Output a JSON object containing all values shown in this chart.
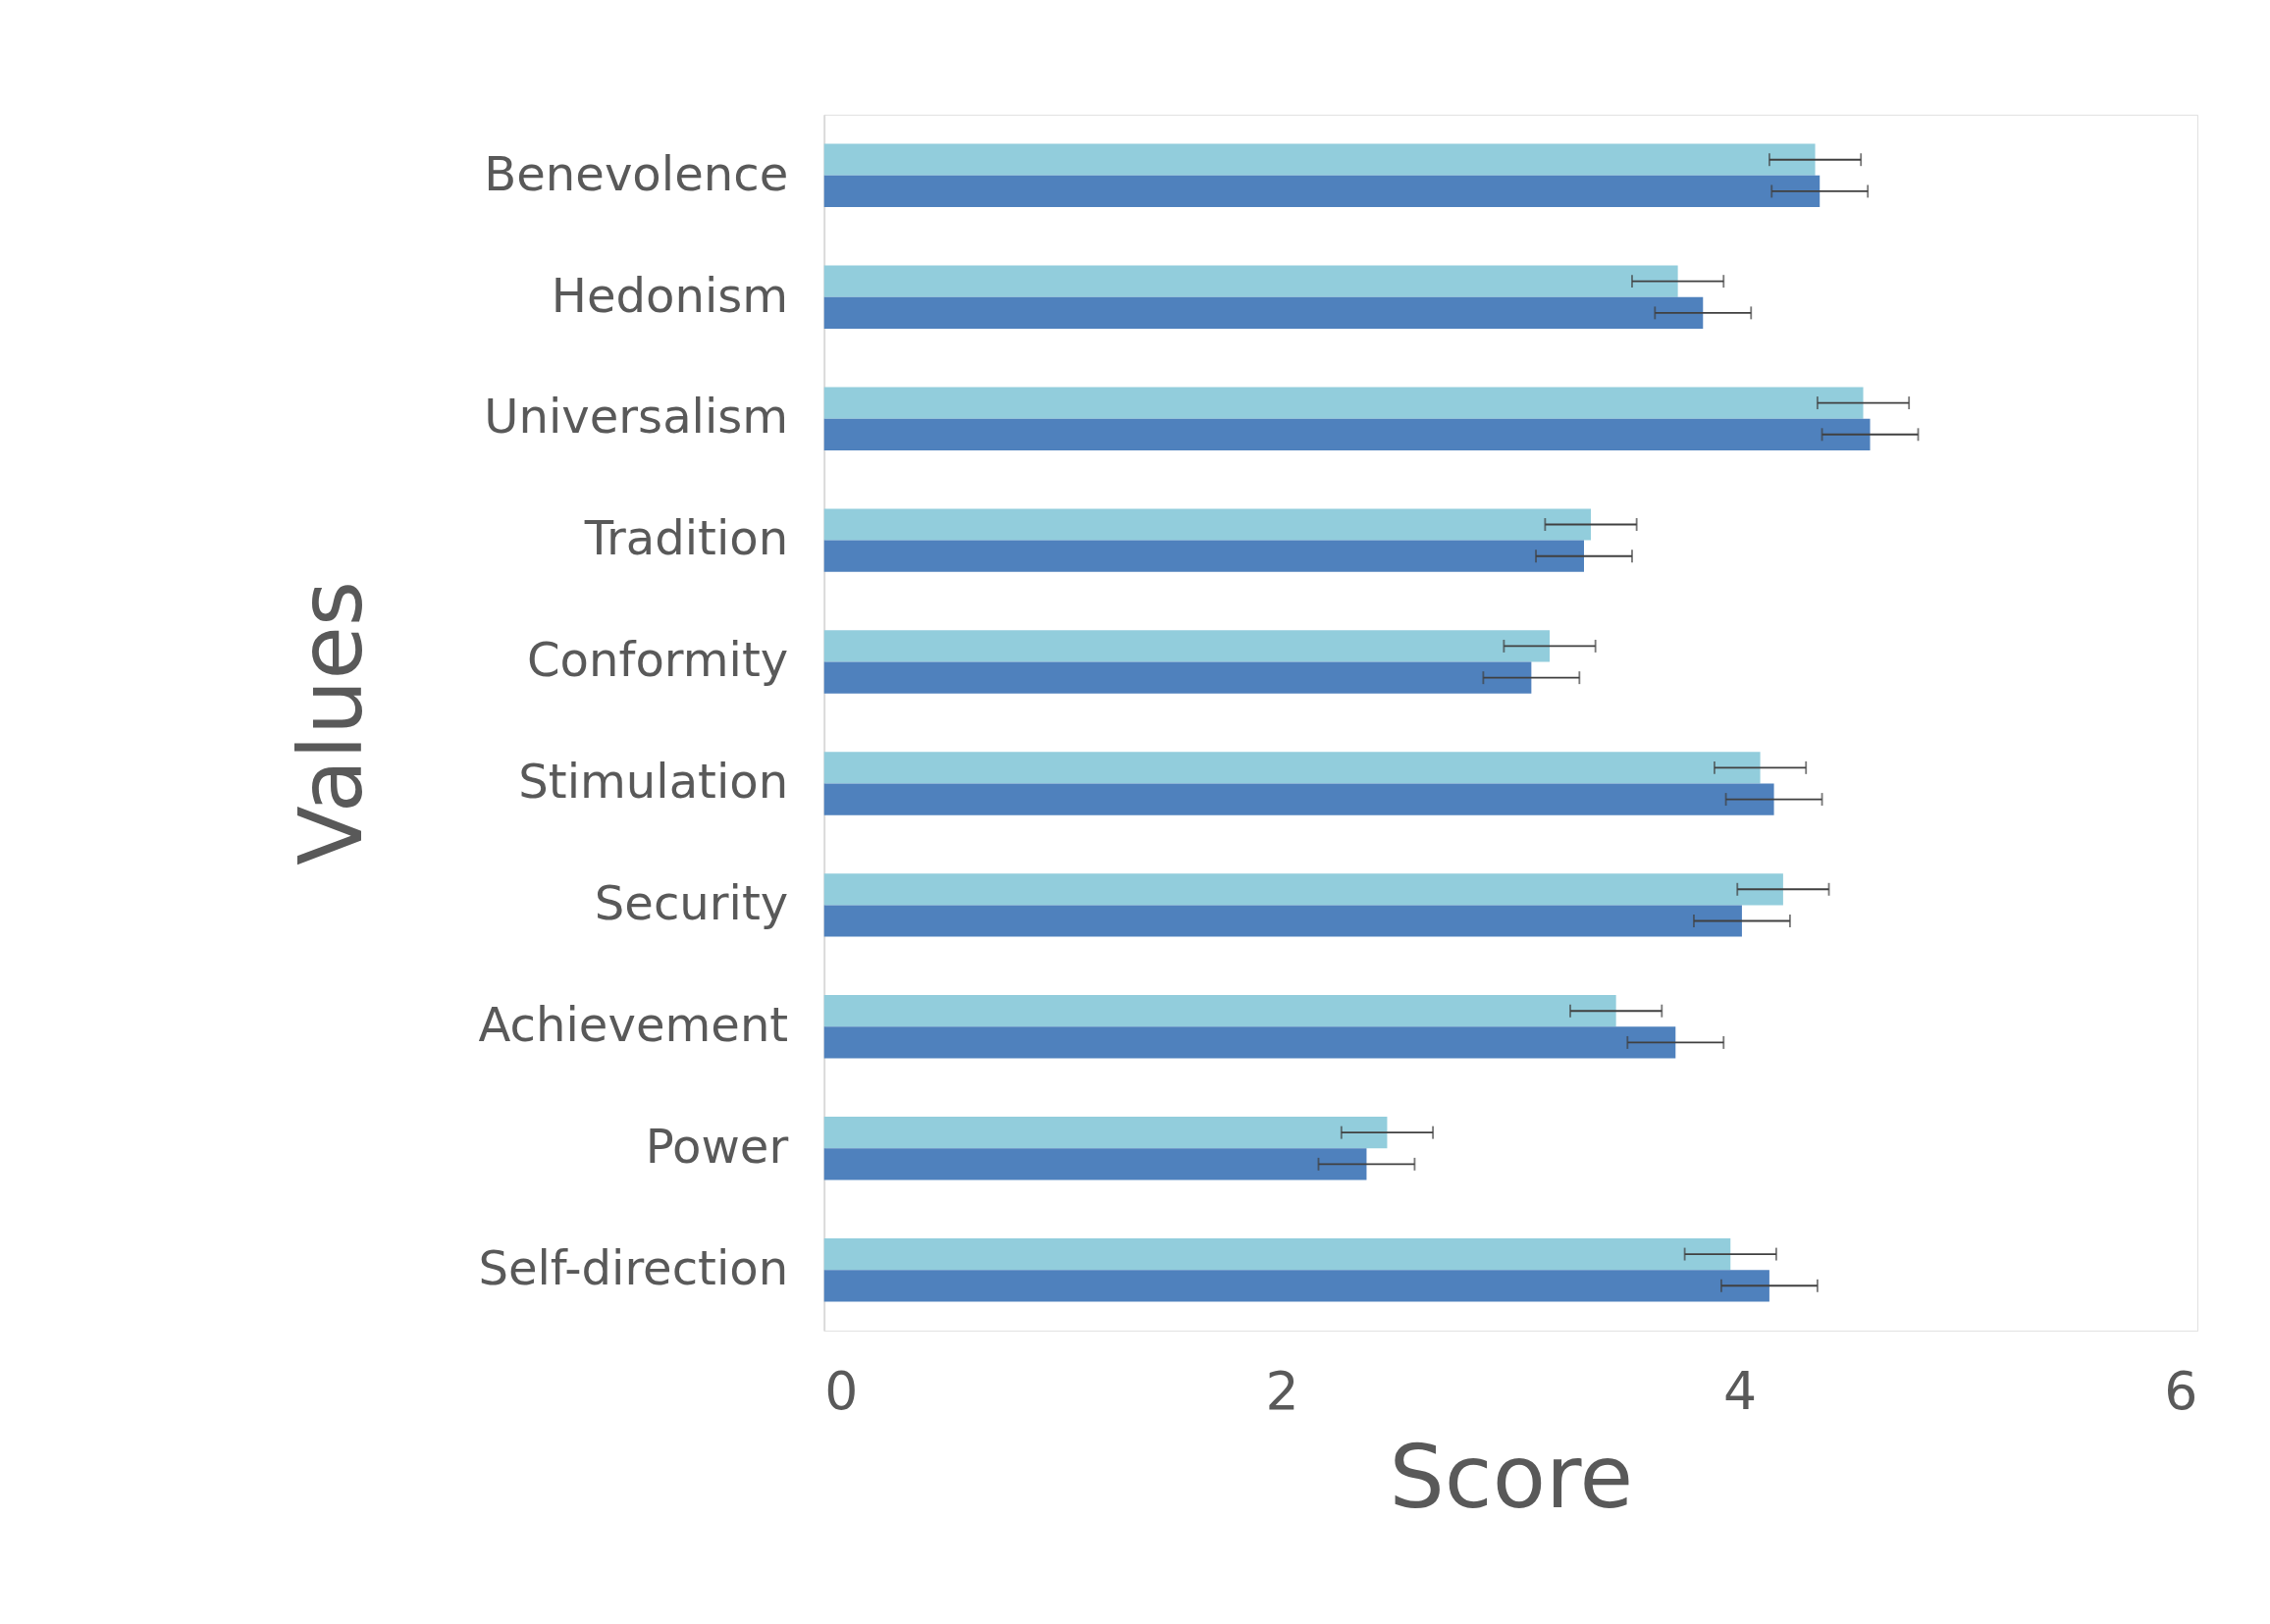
{
  "chart_data": {
    "type": "bar",
    "orientation": "horizontal",
    "xlabel": "Score",
    "ylabel": "Values",
    "categories": [
      "Benevolence",
      "Hedonism",
      "Universalism",
      "Tradition",
      "Conformity",
      "Stimulation",
      "Security",
      "Achievement",
      "Power",
      "Self-direction"
    ],
    "series": [
      {
        "color": "#92cddc",
        "values": [
          4.33,
          3.73,
          4.54,
          3.35,
          3.17,
          4.09,
          4.19,
          3.46,
          2.46,
          3.96
        ],
        "errors": [
          0.2,
          0.2,
          0.2,
          0.2,
          0.2,
          0.2,
          0.2,
          0.2,
          0.2,
          0.2
        ]
      },
      {
        "color": "#4f81bd",
        "values": [
          4.35,
          3.84,
          4.57,
          3.32,
          3.09,
          4.15,
          4.01,
          3.72,
          2.37,
          4.13
        ],
        "errors": [
          0.21,
          0.21,
          0.21,
          0.21,
          0.21,
          0.21,
          0.21,
          0.21,
          0.21,
          0.21
        ]
      }
    ],
    "xlim": [
      0,
      6
    ],
    "xticks": [
      0,
      2,
      4,
      6
    ],
    "grid": false,
    "legend": false
  }
}
